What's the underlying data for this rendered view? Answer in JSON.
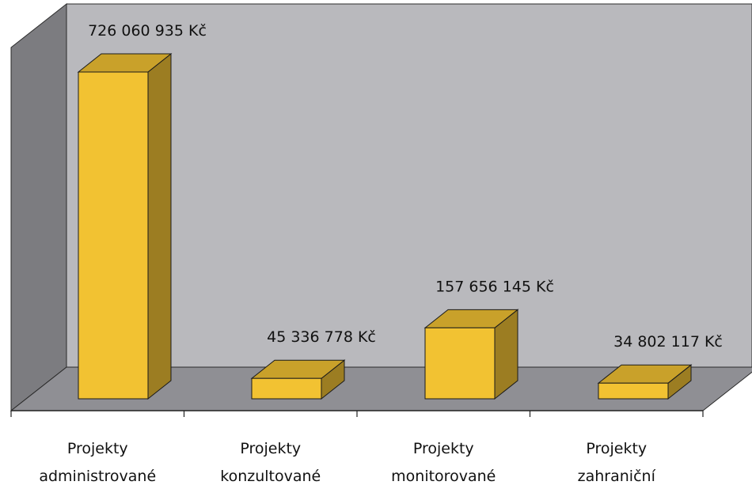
{
  "chart_data": {
    "type": "bar",
    "categories": [
      [
        "Projekty",
        "administrované"
      ],
      [
        "Projekty",
        "konzultované"
      ],
      [
        "Projekty",
        "monitorované"
      ],
      [
        "Projekty",
        "zahraniční"
      ]
    ],
    "values": [
      726060935,
      45336778,
      157656145,
      34802117
    ],
    "data_labels": [
      "726 060 935 Kč",
      "45 336 778 Kč",
      "157 656 145 Kč",
      "34 802 117 Kč"
    ],
    "title": "",
    "xlabel": "",
    "ylabel": "",
    "grid": false,
    "legend": "none",
    "style": "3d-column"
  },
  "colors": {
    "bar_front": "#f2c232",
    "bar_top": "#c9a12a",
    "bar_side": "#9c7d22",
    "back_wall": "#b9b9bd",
    "side_wall": "#7c7c80",
    "floor": "#8f8f94"
  }
}
